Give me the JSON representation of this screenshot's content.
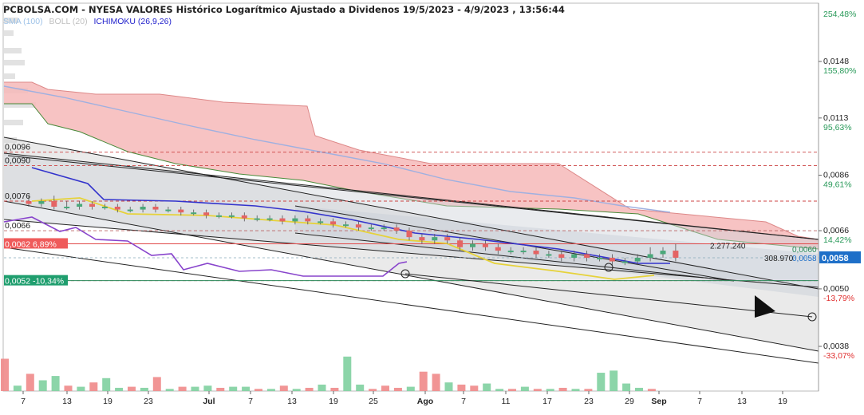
{
  "header": {
    "title": "PCBOLSA.COM - NYESA VALORES Histórico Logarítmico Ajustado a Dividenos 19/5/2023 - 4/9/2023 , 13:56:44"
  },
  "legend": [
    {
      "label": "SMA (100)",
      "color": "#9fc3e8"
    },
    {
      "label": "BOLL (20)",
      "color": "#c0c0c0"
    },
    {
      "label": "ICHIMOKU (26,9,26)",
      "color": "#2222cc"
    }
  ],
  "chart_data": {
    "type": "candlestick",
    "scale": "log",
    "y_ticks": [
      {
        "value": "0,0148",
        "pct": "155,80%"
      },
      {
        "value": "0,0113",
        "pct": "95,63%"
      },
      {
        "value": "0,0086",
        "pct": "49,61%"
      },
      {
        "value": "0,0066",
        "pct": "14,42%"
      },
      {
        "value": "0,0050",
        "pct": "-13,79%"
      },
      {
        "value": "0,0038",
        "pct": "-33,07%"
      }
    ],
    "y_top_pct": "254,48%",
    "x_ticks": [
      "7",
      "13",
      "19",
      "23",
      "Jul",
      "7",
      "13",
      "19",
      "25",
      "Ago",
      "7",
      "11",
      "17",
      "23",
      "29",
      "Sep",
      "7",
      "13",
      "19"
    ],
    "current_price": {
      "value": "0,0058",
      "label": "0,0058"
    },
    "level_labels": [
      {
        "value": 0.0096,
        "label": "0,0096"
      },
      {
        "value": 0.009,
        "label": "0,0090"
      },
      {
        "value": 0.0076,
        "label": "0,0076"
      },
      {
        "value": 0.0066,
        "label": "0,0066"
      },
      {
        "value": 0.0062,
        "label": "0,0062",
        "pct": "6,89%"
      },
      {
        "value": 0.0052,
        "label": "0,0052",
        "pct": "-10,34%"
      }
    ],
    "right_box_labels": [
      "0,0060",
      "0,0058"
    ],
    "volume_labels": [
      "2.277.240",
      "308.970"
    ],
    "candles": [
      {
        "o": 0.0076,
        "c": 0.0075,
        "h": 0.0078,
        "l": 0.0074
      },
      {
        "o": 0.0075,
        "c": 0.0076,
        "h": 0.0077,
        "l": 0.0074
      },
      {
        "o": 0.0076,
        "c": 0.0074,
        "h": 0.0078,
        "l": 0.0073
      },
      {
        "o": 0.0074,
        "c": 0.0074,
        "h": 0.0076,
        "l": 0.0073
      },
      {
        "o": 0.0074,
        "c": 0.0075,
        "h": 0.0076,
        "l": 0.0073
      },
      {
        "o": 0.0075,
        "c": 0.0074,
        "h": 0.0076,
        "l": 0.0073
      },
      {
        "o": 0.0074,
        "c": 0.0074,
        "h": 0.0075,
        "l": 0.0073
      },
      {
        "o": 0.0074,
        "c": 0.0073,
        "h": 0.0075,
        "l": 0.0072
      },
      {
        "o": 0.0073,
        "c": 0.0073,
        "h": 0.0074,
        "l": 0.0072
      },
      {
        "o": 0.0073,
        "c": 0.0074,
        "h": 0.0075,
        "l": 0.0072
      },
      {
        "o": 0.0074,
        "c": 0.0073,
        "h": 0.0075,
        "l": 0.0072
      },
      {
        "o": 0.0073,
        "c": 0.0073,
        "h": 0.0074,
        "l": 0.0072
      },
      {
        "o": 0.0073,
        "c": 0.0072,
        "h": 0.0074,
        "l": 0.0071
      },
      {
        "o": 0.0072,
        "c": 0.0072,
        "h": 0.0073,
        "l": 0.0071
      },
      {
        "o": 0.0072,
        "c": 0.0071,
        "h": 0.0073,
        "l": 0.007
      },
      {
        "o": 0.0071,
        "c": 0.0071,
        "h": 0.0072,
        "l": 0.007
      },
      {
        "o": 0.0071,
        "c": 0.0071,
        "h": 0.0072,
        "l": 0.007
      },
      {
        "o": 0.0071,
        "c": 0.007,
        "h": 0.0072,
        "l": 0.0069
      },
      {
        "o": 0.007,
        "c": 0.007,
        "h": 0.0071,
        "l": 0.0069
      },
      {
        "o": 0.007,
        "c": 0.007,
        "h": 0.0071,
        "l": 0.0069
      },
      {
        "o": 0.007,
        "c": 0.0069,
        "h": 0.0071,
        "l": 0.0068
      },
      {
        "o": 0.0069,
        "c": 0.007,
        "h": 0.0071,
        "l": 0.0068
      },
      {
        "o": 0.007,
        "c": 0.0069,
        "h": 0.0071,
        "l": 0.0068
      },
      {
        "o": 0.0069,
        "c": 0.0069,
        "h": 0.007,
        "l": 0.0068
      },
      {
        "o": 0.0069,
        "c": 0.0068,
        "h": 0.007,
        "l": 0.0067
      },
      {
        "o": 0.0068,
        "c": 0.0068,
        "h": 0.0069,
        "l": 0.0067
      },
      {
        "o": 0.0068,
        "c": 0.0067,
        "h": 0.0069,
        "l": 0.0066
      },
      {
        "o": 0.0067,
        "c": 0.0067,
        "h": 0.0068,
        "l": 0.0066
      },
      {
        "o": 0.0067,
        "c": 0.0067,
        "h": 0.0068,
        "l": 0.0066
      },
      {
        "o": 0.0067,
        "c": 0.0066,
        "h": 0.0068,
        "l": 0.0065
      },
      {
        "o": 0.0066,
        "c": 0.0064,
        "h": 0.0067,
        "l": 0.0063
      },
      {
        "o": 0.0064,
        "c": 0.0063,
        "h": 0.0065,
        "l": 0.0062
      },
      {
        "o": 0.0063,
        "c": 0.0064,
        "h": 0.0065,
        "l": 0.0062
      },
      {
        "o": 0.0064,
        "c": 0.0063,
        "h": 0.0065,
        "l": 0.0062
      },
      {
        "o": 0.0063,
        "c": 0.0061,
        "h": 0.0064,
        "l": 0.006
      },
      {
        "o": 0.0061,
        "c": 0.0062,
        "h": 0.0063,
        "l": 0.006
      },
      {
        "o": 0.0062,
        "c": 0.0061,
        "h": 0.0063,
        "l": 0.006
      },
      {
        "o": 0.0061,
        "c": 0.006,
        "h": 0.0062,
        "l": 0.0059
      },
      {
        "o": 0.006,
        "c": 0.006,
        "h": 0.0061,
        "l": 0.0059
      },
      {
        "o": 0.006,
        "c": 0.006,
        "h": 0.0061,
        "l": 0.0059
      },
      {
        "o": 0.006,
        "c": 0.0059,
        "h": 0.0061,
        "l": 0.0058
      },
      {
        "o": 0.0059,
        "c": 0.0059,
        "h": 0.006,
        "l": 0.0058
      },
      {
        "o": 0.0059,
        "c": 0.0058,
        "h": 0.006,
        "l": 0.0057
      },
      {
        "o": 0.0058,
        "c": 0.0059,
        "h": 0.006,
        "l": 0.0057
      },
      {
        "o": 0.0059,
        "c": 0.0058,
        "h": 0.006,
        "l": 0.0057
      },
      {
        "o": 0.0058,
        "c": 0.0058,
        "h": 0.0059,
        "l": 0.0057
      },
      {
        "o": 0.0058,
        "c": 0.0057,
        "h": 0.0059,
        "l": 0.0056
      },
      {
        "o": 0.0057,
        "c": 0.0057,
        "h": 0.0058,
        "l": 0.0056
      },
      {
        "o": 0.0057,
        "c": 0.0058,
        "h": 0.0059,
        "l": 0.0056
      },
      {
        "o": 0.0058,
        "c": 0.0059,
        "h": 0.0061,
        "l": 0.0057
      },
      {
        "o": 0.0059,
        "c": 0.006,
        "h": 0.0061,
        "l": 0.0058
      },
      {
        "o": 0.006,
        "c": 0.0058,
        "h": 0.0062,
        "l": 0.0057
      }
    ],
    "volumes": [
      3,
      0.5,
      1.6,
      1,
      1.4,
      0.5,
      0.4,
      0.8,
      1.2,
      0.3,
      0.4,
      0.3,
      1.3,
      0.2,
      0.4,
      0.4,
      0.5,
      0.3,
      0.4,
      0.4,
      0.2,
      0.2,
      0.5,
      0.2,
      0.3,
      0.6,
      0.3,
      3.2,
      0.6,
      0.2,
      0.5,
      0.3,
      0.4,
      1.8,
      1.6,
      0.8,
      0.6,
      0.5,
      0.7,
      0.2,
      0.2,
      0.4,
      0.2,
      0.2,
      0.3,
      0.2,
      0.2,
      1.7,
      1.9,
      0.7,
      0.3,
      0.2
    ],
    "grid": true,
    "legend_position": "top-left"
  }
}
